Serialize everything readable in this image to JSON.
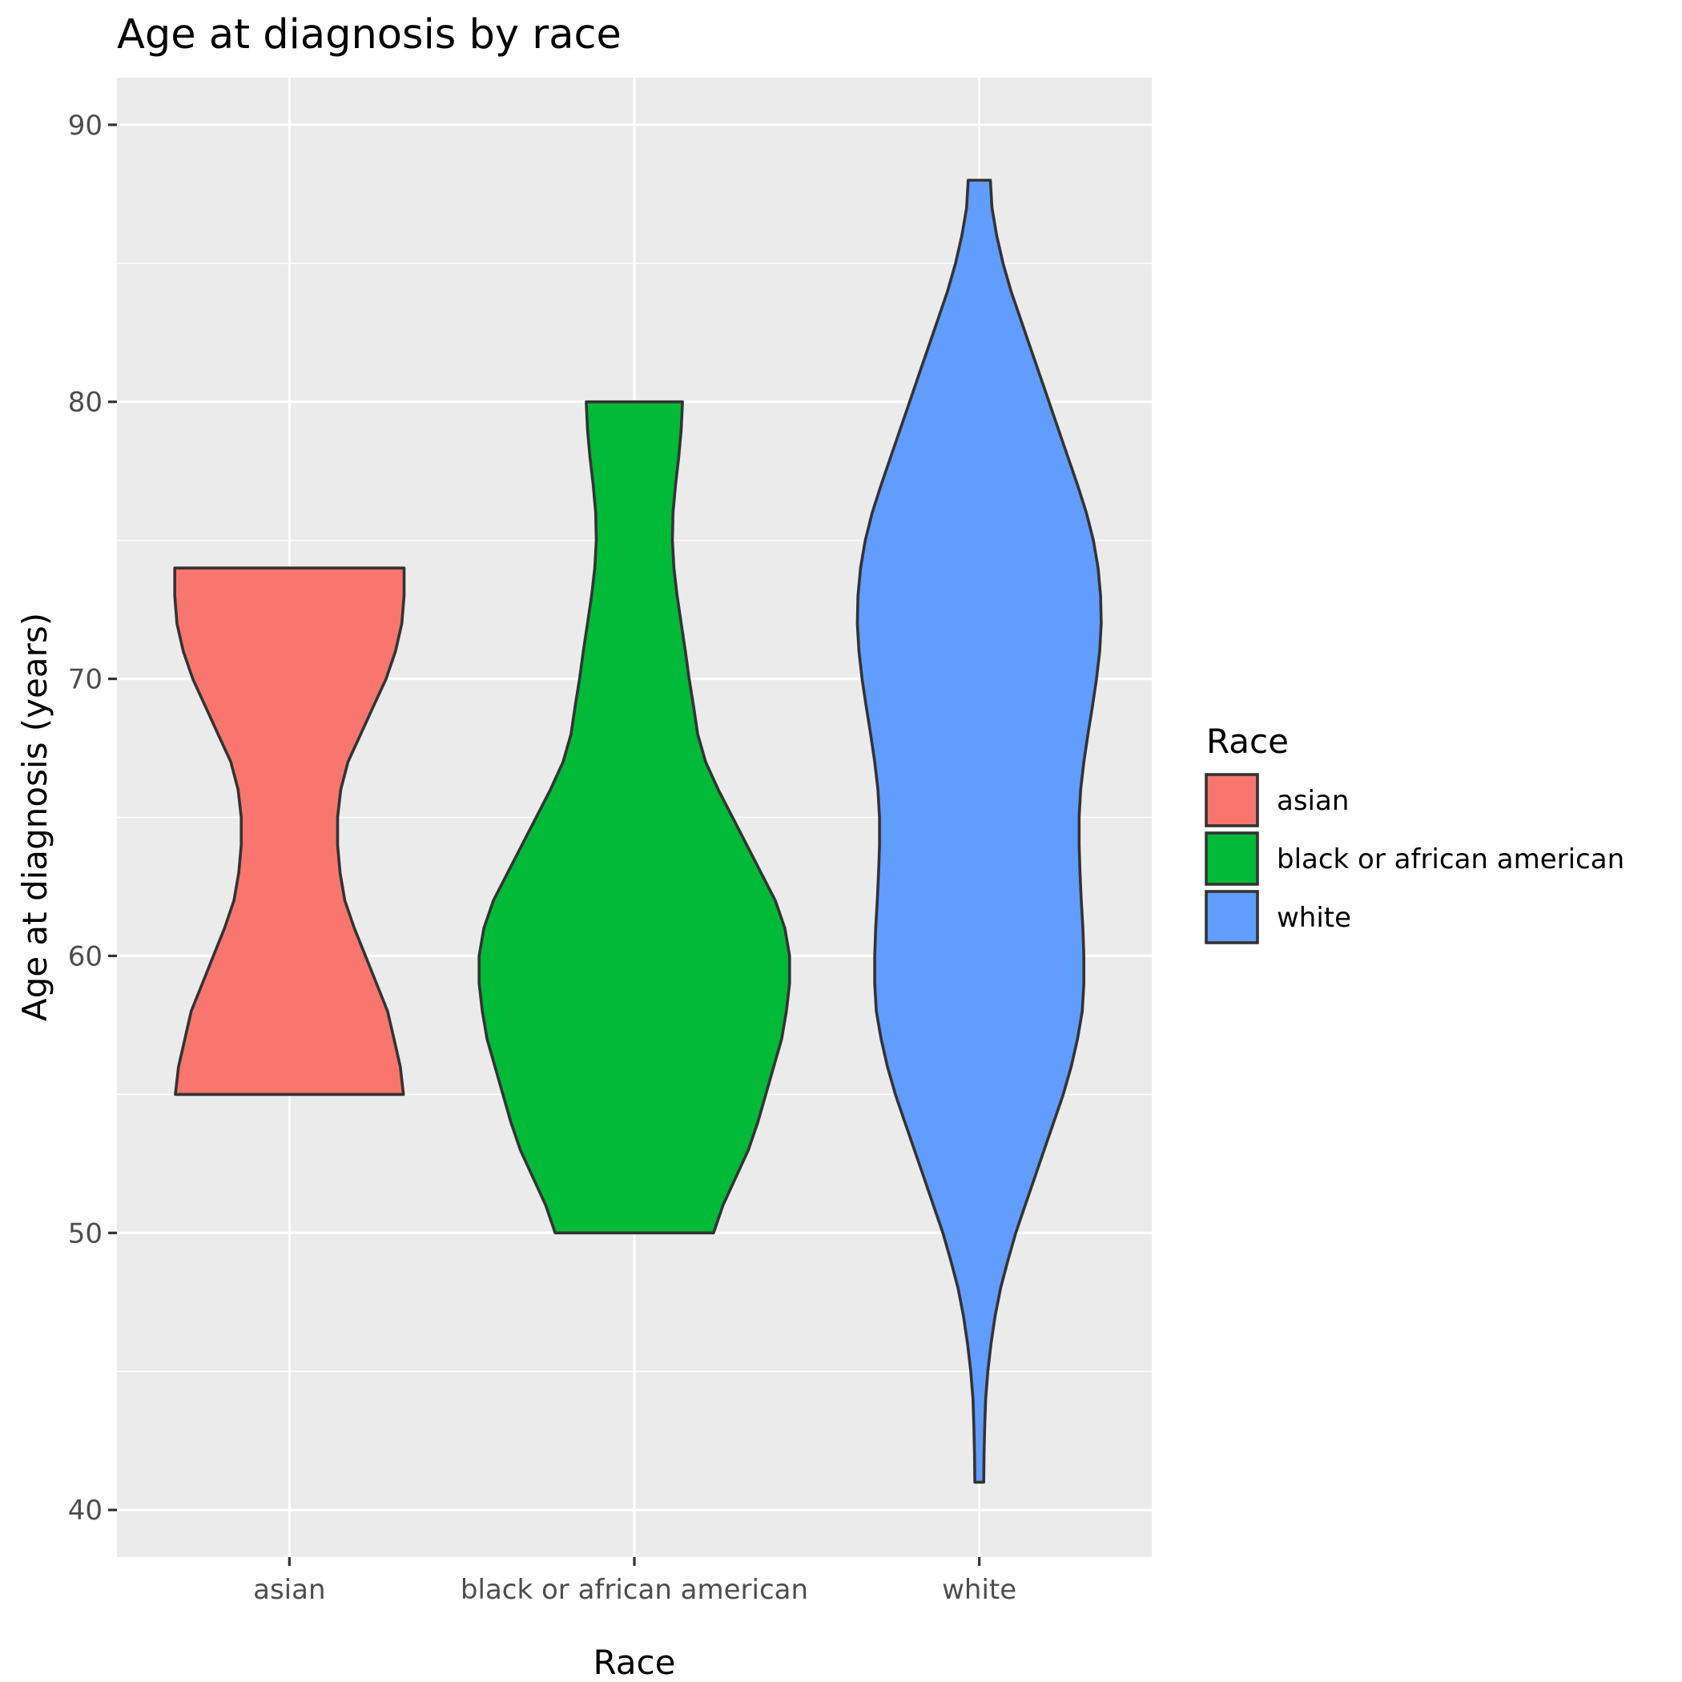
{
  "chart_data": {
    "type": "violin",
    "title": "Age at diagnosis by race",
    "xlabel": "Race",
    "ylabel": "Age at diagnosis (years)",
    "ylim": [
      38.3,
      91.7
    ],
    "yticks": [
      40,
      50,
      60,
      70,
      80,
      90
    ],
    "yticks_minor": [
      45,
      55,
      65,
      75,
      85
    ],
    "grid": true,
    "legend": {
      "title": "Race",
      "position": "right"
    },
    "categories": [
      "asian",
      "black or african american",
      "white"
    ],
    "series": [
      {
        "name": "asian",
        "color": "#F8766D",
        "min": 55,
        "max": 74,
        "profile": [
          [
            55,
            0.36
          ],
          [
            56,
            0.35
          ],
          [
            57,
            0.33
          ],
          [
            58,
            0.31
          ],
          [
            59,
            0.275
          ],
          [
            60,
            0.24
          ],
          [
            61,
            0.205
          ],
          [
            62,
            0.175
          ],
          [
            63,
            0.16
          ],
          [
            64,
            0.152
          ],
          [
            65,
            0.152
          ],
          [
            66,
            0.162
          ],
          [
            67,
            0.185
          ],
          [
            68,
            0.225
          ],
          [
            69,
            0.265
          ],
          [
            70,
            0.305
          ],
          [
            71,
            0.335
          ],
          [
            72,
            0.355
          ],
          [
            73,
            0.362
          ],
          [
            74,
            0.362
          ]
        ]
      },
      {
        "name": "black or african american",
        "color": "#00BA38",
        "min": 50,
        "max": 80,
        "profile": [
          [
            50,
            0.25
          ],
          [
            51,
            0.28
          ],
          [
            52,
            0.32
          ],
          [
            53,
            0.36
          ],
          [
            54,
            0.39
          ],
          [
            55,
            0.415
          ],
          [
            56,
            0.44
          ],
          [
            57,
            0.465
          ],
          [
            58,
            0.48
          ],
          [
            59,
            0.49
          ],
          [
            60,
            0.49
          ],
          [
            61,
            0.475
          ],
          [
            62,
            0.445
          ],
          [
            63,
            0.4
          ],
          [
            64,
            0.355
          ],
          [
            65,
            0.31
          ],
          [
            66,
            0.265
          ],
          [
            67,
            0.225
          ],
          [
            68,
            0.2
          ],
          [
            69,
            0.187
          ],
          [
            70,
            0.173
          ],
          [
            71,
            0.161
          ],
          [
            72,
            0.148
          ],
          [
            73,
            0.135
          ],
          [
            74,
            0.125
          ],
          [
            75,
            0.12
          ],
          [
            76,
            0.122
          ],
          [
            77,
            0.13
          ],
          [
            78,
            0.14
          ],
          [
            79,
            0.148
          ],
          [
            80,
            0.152
          ]
        ]
      },
      {
        "name": "white",
        "color": "#619CFF",
        "min": 41,
        "max": 88,
        "profile": [
          [
            41,
            0.014
          ],
          [
            42,
            0.015
          ],
          [
            43,
            0.017
          ],
          [
            44,
            0.02
          ],
          [
            45,
            0.027
          ],
          [
            46,
            0.037
          ],
          [
            47,
            0.05
          ],
          [
            48,
            0.067
          ],
          [
            49,
            0.09
          ],
          [
            50,
            0.115
          ],
          [
            51,
            0.145
          ],
          [
            52,
            0.175
          ],
          [
            53,
            0.205
          ],
          [
            54,
            0.235
          ],
          [
            55,
            0.265
          ],
          [
            56,
            0.29
          ],
          [
            57,
            0.31
          ],
          [
            58,
            0.325
          ],
          [
            59,
            0.33
          ],
          [
            60,
            0.33
          ],
          [
            61,
            0.327
          ],
          [
            62,
            0.322
          ],
          [
            63,
            0.318
          ],
          [
            64,
            0.315
          ],
          [
            65,
            0.315
          ],
          [
            66,
            0.32
          ],
          [
            67,
            0.33
          ],
          [
            68,
            0.343
          ],
          [
            69,
            0.357
          ],
          [
            70,
            0.37
          ],
          [
            71,
            0.38
          ],
          [
            72,
            0.385
          ],
          [
            73,
            0.383
          ],
          [
            74,
            0.375
          ],
          [
            75,
            0.36
          ],
          [
            76,
            0.338
          ],
          [
            77,
            0.31
          ],
          [
            78,
            0.28
          ],
          [
            79,
            0.25
          ],
          [
            80,
            0.22
          ],
          [
            81,
            0.19
          ],
          [
            82,
            0.16
          ],
          [
            83,
            0.13
          ],
          [
            84,
            0.1
          ],
          [
            85,
            0.075
          ],
          [
            86,
            0.055
          ],
          [
            87,
            0.04
          ],
          [
            88,
            0.035
          ]
        ]
      }
    ]
  }
}
